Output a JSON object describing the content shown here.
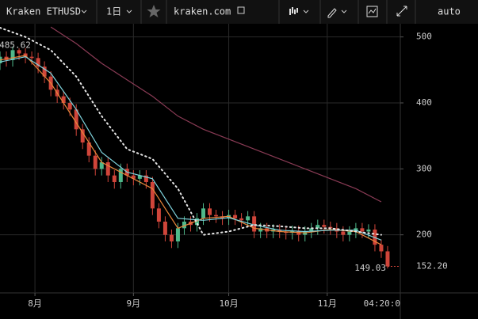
{
  "toolbar": {
    "symbol": "Kraken ETHUSD",
    "interval": "1日",
    "site": "kraken.com",
    "scale": "auto"
  },
  "chart_data": {
    "type": "candlestick",
    "x": [
      -11,
      -9,
      -7,
      -5,
      -3,
      -1,
      1,
      3,
      5,
      7,
      9,
      11,
      13,
      15,
      17,
      19,
      21,
      23,
      25,
      27,
      29,
      31,
      33,
      35,
      37,
      39,
      41,
      43,
      45,
      47,
      49,
      51,
      53,
      55,
      57,
      59,
      61,
      63,
      65,
      67,
      69,
      71,
      73,
      75,
      77,
      79,
      81,
      83,
      85,
      87,
      89,
      91,
      93,
      95,
      97,
      99,
      101,
      103,
      105,
      107,
      109,
      111
    ],
    "open": [
      460,
      470,
      465,
      480,
      475,
      470,
      468,
      455,
      440,
      420,
      410,
      400,
      390,
      360,
      340,
      320,
      300,
      310,
      290,
      280,
      300,
      290,
      285,
      290,
      280,
      240,
      220,
      200,
      190,
      210,
      220,
      215,
      225,
      240,
      230,
      228,
      225,
      230,
      225,
      222,
      228,
      205,
      210,
      205,
      208,
      205,
      203,
      206,
      200,
      205,
      210,
      215,
      212,
      210,
      205,
      200,
      205,
      210,
      205,
      208,
      185,
      175
    ],
    "high": [
      478,
      478,
      485.62,
      483,
      483,
      478,
      476,
      463,
      448,
      428,
      418,
      408,
      398,
      368,
      348,
      328,
      318,
      318,
      298,
      308,
      308,
      298,
      298,
      298,
      288,
      248,
      228,
      208,
      218,
      228,
      228,
      233,
      248,
      248,
      238,
      236,
      238,
      238,
      233,
      236,
      236,
      218,
      218,
      216,
      216,
      213,
      214,
      214,
      213,
      218,
      223,
      223,
      220,
      218,
      213,
      213,
      218,
      218,
      216,
      216,
      193,
      183
    ],
    "low": [
      450,
      455,
      455,
      465,
      460,
      458,
      445,
      430,
      410,
      400,
      390,
      380,
      350,
      330,
      310,
      290,
      290,
      280,
      270,
      270,
      280,
      275,
      275,
      270,
      230,
      210,
      190,
      180,
      180,
      200,
      205,
      205,
      215,
      220,
      218,
      215,
      215,
      215,
      212,
      212,
      195,
      195,
      195,
      195,
      195,
      193,
      193,
      190,
      190,
      195,
      200,
      202,
      200,
      195,
      190,
      190,
      195,
      195,
      195,
      175,
      165,
      149.03
    ],
    "close": [
      470,
      465,
      480,
      475,
      470,
      468,
      455,
      440,
      420,
      410,
      400,
      390,
      360,
      340,
      320,
      300,
      310,
      290,
      280,
      300,
      290,
      285,
      290,
      280,
      240,
      220,
      200,
      190,
      210,
      220,
      215,
      225,
      240,
      230,
      228,
      225,
      230,
      225,
      222,
      228,
      205,
      210,
      205,
      208,
      205,
      203,
      206,
      200,
      205,
      210,
      215,
      212,
      210,
      205,
      200,
      205,
      210,
      205,
      208,
      185,
      175,
      152.2
    ],
    "up_color": "#4fb88a",
    "down_color": "#d0453a",
    "last_price_label": "152.20",
    "last_price_color": "#d0453a",
    "countdown": "04:20:0",
    "series": [
      {
        "color": "#e8863a",
        "style": "solid",
        "x": [
          -11,
          -3,
          5,
          13,
          21,
          29,
          37,
          45,
          53,
          61,
          69,
          77,
          85,
          93,
          101,
          109
        ],
        "values": [
          465,
          472,
          430,
          370,
          310,
          290,
          270,
          210,
          225,
          228,
          210,
          205,
          203,
          208,
          205,
          185
        ]
      },
      {
        "color": "#7fd3dd",
        "style": "solid",
        "x": [
          -11,
          -3,
          5,
          13,
          21,
          29,
          37,
          45,
          53,
          61,
          69,
          77,
          85,
          93,
          101,
          109
        ],
        "values": [
          462,
          470,
          445,
          390,
          325,
          295,
          285,
          225,
          222,
          226,
          215,
          207,
          205,
          207,
          207,
          192
        ]
      },
      {
        "color": "#e6e6e6",
        "style": "dotted",
        "x": [
          -11,
          -3,
          5,
          13,
          21,
          29,
          37,
          45,
          53,
          61,
          69,
          77,
          85,
          93,
          101,
          109
        ],
        "values": [
          514,
          500,
          480,
          440,
          380,
          330,
          315,
          270,
          200,
          205,
          215,
          213,
          210,
          210,
          205,
          200
        ]
      },
      {
        "color": "#8a3b55",
        "style": "solid",
        "x": [
          -11,
          -3,
          5,
          13,
          21,
          29,
          37,
          45,
          53,
          61,
          69,
          77,
          85,
          93,
          101,
          109
        ],
        "values": [
          null,
          null,
          515,
          490,
          460,
          435,
          410,
          380,
          360,
          345,
          330,
          315,
          300,
          285,
          270,
          250
        ]
      }
    ],
    "xlim": [
      -11,
      115
    ],
    "xticks": [
      {
        "value": 0,
        "label": "8月"
      },
      {
        "value": 31,
        "label": "9月"
      },
      {
        "value": 61,
        "label": "10月"
      },
      {
        "value": 92,
        "label": "11月"
      }
    ],
    "ylim": [
      112,
      520
    ],
    "yticks": [
      200,
      300,
      400,
      500
    ],
    "grid": true
  }
}
